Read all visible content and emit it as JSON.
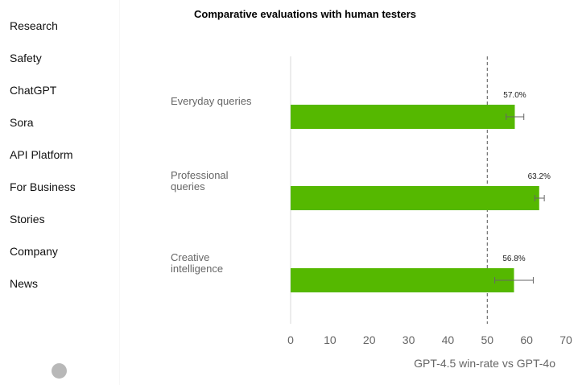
{
  "sidebar": {
    "items": [
      {
        "label": "Research"
      },
      {
        "label": "Safety"
      },
      {
        "label": "ChatGPT"
      },
      {
        "label": "Sora"
      },
      {
        "label": "API Platform"
      },
      {
        "label": "For Business"
      },
      {
        "label": "Stories"
      },
      {
        "label": "Company"
      },
      {
        "label": "News"
      }
    ]
  },
  "chart_data": {
    "type": "bar",
    "orientation": "horizontal",
    "title": "Comparative evaluations with human testers",
    "xlabel": "GPT-4.5 win-rate vs GPT-4o",
    "xlim": [
      0,
      70
    ],
    "xticks": [
      "0",
      "10",
      "20",
      "30",
      "40",
      "50",
      "60",
      "70"
    ],
    "reference_line": 50,
    "bar_color": "#55b800",
    "categories": [
      {
        "line1": "Everyday queries",
        "line2": ""
      },
      {
        "line1": "Professional",
        "line2": "queries"
      },
      {
        "line1": "Creative",
        "line2": "intelligence"
      }
    ],
    "values": [
      57.0,
      63.2,
      56.8
    ],
    "value_labels": [
      "57.0%",
      "63.2%",
      "56.8%"
    ],
    "error_low": [
      54.8,
      62.1,
      51.9
    ],
    "error_high": [
      59.3,
      64.5,
      61.7
    ]
  }
}
